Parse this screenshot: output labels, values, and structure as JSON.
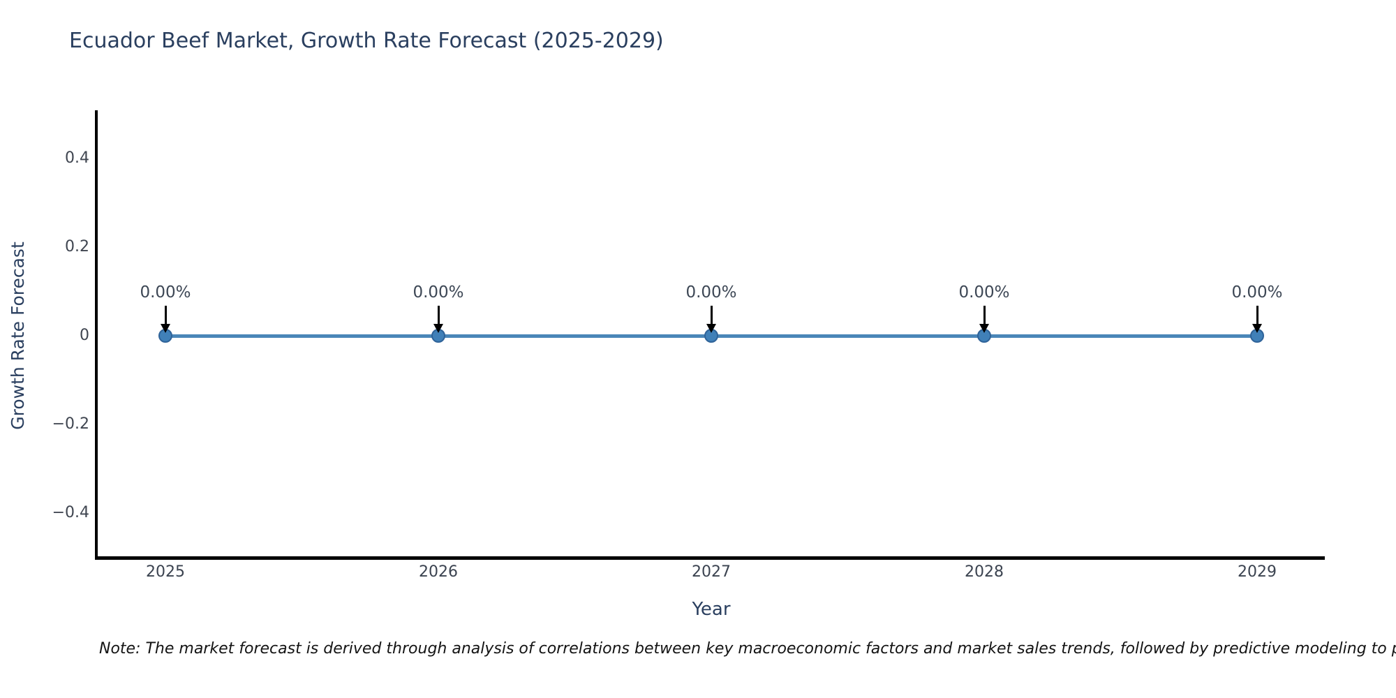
{
  "title": "Ecuador Beef Market, Growth Rate Forecast (2025-2029)",
  "note": "Note: The market forecast is derived through analysis of correlations between key macroeconomic factors and market sales trends, followed by predictive modeling to project future sal",
  "chart_data": {
    "type": "line",
    "title": "Ecuador Beef Market, Growth Rate Forecast (2025-2029)",
    "xlabel": "Year",
    "ylabel": "Growth Rate Forecast",
    "x": [
      2025,
      2026,
      2027,
      2028,
      2029
    ],
    "y": [
      0,
      0,
      0,
      0,
      0
    ],
    "point_labels": [
      "0.00%",
      "0.00%",
      "0.00%",
      "0.00%",
      "0.00%"
    ],
    "x_tick_labels": [
      "2025",
      "2026",
      "2027",
      "2028",
      "2029"
    ],
    "y_tick_values": [
      0.4,
      0.2,
      0,
      -0.2,
      -0.4
    ],
    "y_tick_labels": [
      "0.4",
      "0.2",
      "0",
      "−0.2",
      "−0.4"
    ],
    "ylim": [
      -0.5,
      0.5
    ],
    "grid": false,
    "legend": false,
    "colors": {
      "line": "#4a86b8",
      "marker_fill": "#4080b8",
      "marker_edge": "#2f6399",
      "axis_line": "#000000",
      "annotation_arrow": "#000000",
      "title_text": "#2a3f5f",
      "tick_text": "#3f4550",
      "note_text": "#141414"
    }
  }
}
